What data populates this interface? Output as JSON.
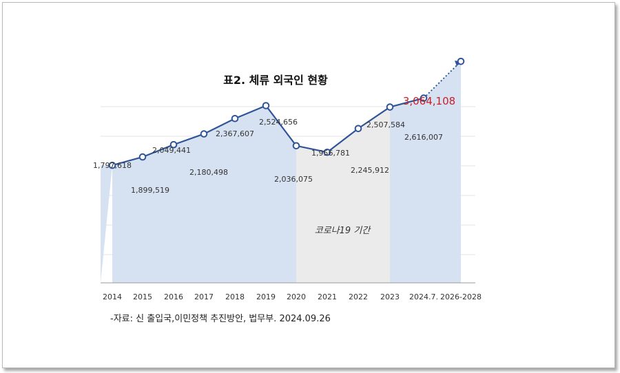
{
  "chart_data": {
    "type": "line",
    "title": "표2. 체류 외국인 현황",
    "categories": [
      "2014",
      "2015",
      "2016",
      "2017",
      "2018",
      "2019",
      "2020",
      "2021",
      "2022",
      "2023",
      "2024.7.",
      "2026-2028"
    ],
    "values": [
      1797618,
      1899519,
      2049441,
      2180498,
      2367607,
      2524656,
      2036075,
      1956781,
      2245912,
      2507584,
      2616007,
      3064108
    ],
    "labels": [
      "1,797,618",
      "1,899,519",
      "2,049,441",
      "2,180,498",
      "2,367,607",
      "2,524,656",
      "2,036,075",
      "1,956,781",
      "2,245,912",
      "2,507,584",
      "2,616,007",
      "3,064,108"
    ],
    "projected_index": 11,
    "highlight_label": "3,064,108",
    "shaded_band": {
      "label": "코로나19 기간",
      "from": "2020",
      "to": "2023"
    },
    "colors": {
      "line": "#2f5597",
      "area": "#d6e1f1",
      "covid_band": "#ebebeb",
      "highlight": "#c8202a"
    },
    "grid": true,
    "source": "-자료: 신 출입국,이민정책 추진방안, 법무부. 2024.09.26"
  }
}
